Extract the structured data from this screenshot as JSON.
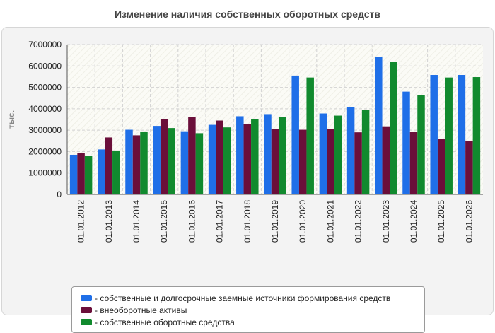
{
  "chart_data": {
    "type": "bar",
    "title": "Изменение наличия собственных оборотных средств",
    "ylabel": "тыс.",
    "xlabel": "",
    "ylim": [
      0,
      7000000
    ],
    "yticks": [
      0,
      1000000,
      2000000,
      3000000,
      4000000,
      5000000,
      6000000,
      7000000
    ],
    "grid": true,
    "legend_position": "bottom",
    "categories": [
      "01.01.2012",
      "01.01.2013",
      "01.01.2014",
      "01.01.2015",
      "01.01.2016",
      "01.01.2017",
      "01.01.2018",
      "01.01.2019",
      "01.01.2020",
      "01.01.2021",
      "01.01.2022",
      "01.01.2023",
      "01.01.2024",
      "01.01.2025",
      "01.01.2026"
    ],
    "series": [
      {
        "name": "собственные и долгосрочные заемные источники формирования средств",
        "color": "#1f6fe8",
        "values": [
          1850000,
          2100000,
          3020000,
          3200000,
          2950000,
          3250000,
          3650000,
          3750000,
          5550000,
          3780000,
          4080000,
          6420000,
          4800000,
          5580000,
          5580000
        ]
      },
      {
        "name": "внеоборотные активы",
        "color": "#6b0f3a",
        "values": [
          1920000,
          2660000,
          2760000,
          3520000,
          3620000,
          3450000,
          3300000,
          3060000,
          3020000,
          3060000,
          2900000,
          3180000,
          2920000,
          2600000,
          2500000
        ]
      },
      {
        "name": "собственные оборотные средства",
        "color": "#118a2e",
        "values": [
          1800000,
          2050000,
          2940000,
          3100000,
          2860000,
          3130000,
          3530000,
          3620000,
          5460000,
          3680000,
          3950000,
          6200000,
          4630000,
          5460000,
          5480000
        ]
      }
    ]
  }
}
